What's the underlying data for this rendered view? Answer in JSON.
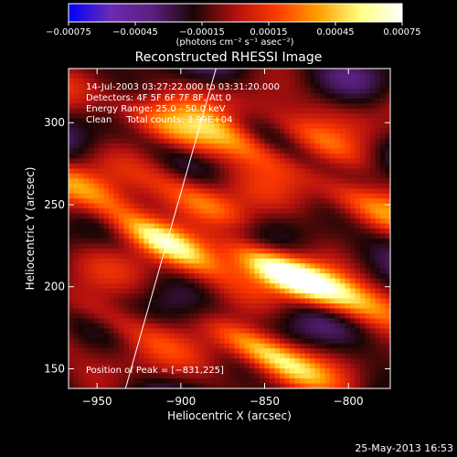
{
  "chart_data": {
    "type": "heatmap",
    "title": "Reconstructed RHESSI Image",
    "xlabel": "Heliocentric X (arcsec)",
    "ylabel": "Heliocentric Y (arcsec)",
    "xlim": [
      -967,
      -775
    ],
    "ylim": [
      138,
      333
    ],
    "x_ticks": [
      {
        "value": -950,
        "label": "−950"
      },
      {
        "value": -900,
        "label": "−900"
      },
      {
        "value": -850,
        "label": "−850"
      },
      {
        "value": -800,
        "label": "−800"
      }
    ],
    "y_ticks": [
      {
        "value": 150,
        "label": "150"
      },
      {
        "value": 200,
        "label": "200"
      },
      {
        "value": 250,
        "label": "250"
      },
      {
        "value": 300,
        "label": "300"
      }
    ],
    "colorbar": {
      "range": [
        -0.00075,
        0.00075
      ],
      "ticks": [
        {
          "value": -0.00075,
          "label": "−0.00075"
        },
        {
          "value": -0.00045,
          "label": "−0.00045"
        },
        {
          "value": -0.00015,
          "label": "−0.00015"
        },
        {
          "value": 0.00015,
          "label": "0.00015"
        },
        {
          "value": 0.00045,
          "label": "0.00045"
        },
        {
          "value": 0.00075,
          "label": "0.00075"
        }
      ],
      "unit_label": "(photons cm⁻² s⁻¹ asec⁻²)",
      "colormap": [
        "#0000ff",
        "#6a2bb0",
        "#5a2080",
        "#1a0505",
        "#b01010",
        "#ff3a00",
        "#ffa000",
        "#ffff80",
        "#ffffff"
      ]
    },
    "annotations": [
      "14-Jul-2003 03:27:22.000 to 03:31:20.000",
      "Detectors: 4F 5F 6F 7F 8F, Att 0",
      "Energy Range: 25.0 - 50.0 keV",
      "Clean     Total counts: 3.99E+04"
    ],
    "peak_label": "Position of Peak = [−831,225]",
    "peak": {
      "x": -831,
      "y": 225
    },
    "limb_line": [
      {
        "x": -933,
        "y": 138
      },
      {
        "x": -879,
        "y": 333
      }
    ],
    "bright_sources": [
      {
        "x": -838,
        "y": 208,
        "strength": 1.0
      },
      {
        "x": -912,
        "y": 228,
        "strength": 0.85
      },
      {
        "x": -850,
        "y": 160,
        "strength": 0.75
      },
      {
        "x": -870,
        "y": 290,
        "strength": 0.55
      },
      {
        "x": -905,
        "y": 295,
        "strength": 0.5
      },
      {
        "x": -800,
        "y": 195,
        "strength": 0.45
      },
      {
        "x": -955,
        "y": 258,
        "strength": 0.45
      },
      {
        "x": -885,
        "y": 250,
        "strength": 0.4
      },
      {
        "x": -790,
        "y": 250,
        "strength": 0.4
      },
      {
        "x": -820,
        "y": 290,
        "strength": 0.35
      },
      {
        "x": -940,
        "y": 180,
        "strength": 0.35
      }
    ]
  },
  "footer": {
    "timestamp": "25-May-2013 16:53"
  }
}
